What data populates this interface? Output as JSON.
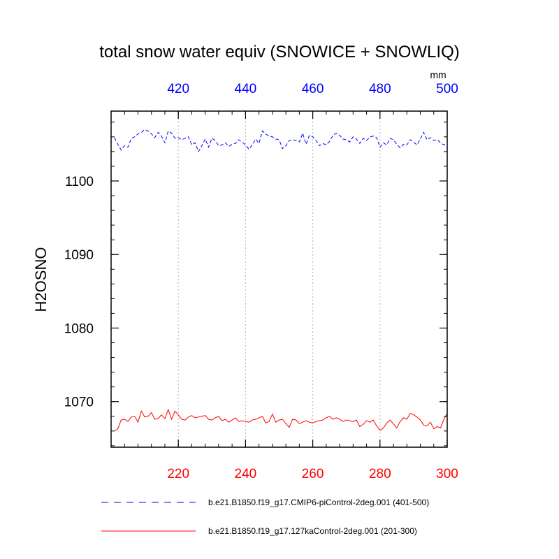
{
  "chart_data": {
    "type": "line",
    "title": "total snow water equiv (SNOWICE + SNOWLIQ)",
    "units": "mm",
    "ylabel": "H2OSNO",
    "ylim": [
      1063.8,
      1109.5
    ],
    "yticks": [
      1070,
      1080,
      1090,
      1100
    ],
    "bottom_axis": {
      "range": [
        200,
        300
      ],
      "ticks": [
        220,
        240,
        260,
        280,
        300
      ],
      "color": "#ff0000"
    },
    "top_axis": {
      "range": [
        400,
        500
      ],
      "ticks": [
        420,
        440,
        460,
        480,
        500
      ],
      "color": "#0000ff"
    },
    "grid": "vertical dotted at major ticks",
    "legend_placement": "below plot",
    "series": [
      {
        "name": "b.e21.B1850.f19_g17.CMIP6-piControl-2deg.001 (401-500)",
        "color": "#0000ff",
        "dash": "dashed",
        "axis": "top",
        "x": [
          401,
          402,
          403,
          404,
          405,
          406,
          407,
          408,
          409,
          410,
          411,
          412,
          413,
          414,
          415,
          416,
          417,
          418,
          419,
          420,
          421,
          422,
          423,
          424,
          425,
          426,
          427,
          428,
          429,
          430,
          431,
          432,
          433,
          434,
          435,
          436,
          437,
          438,
          439,
          440,
          441,
          442,
          443,
          444,
          445,
          446,
          447,
          448,
          449,
          450,
          451,
          452,
          453,
          454,
          455,
          456,
          457,
          458,
          459,
          460,
          461,
          462,
          463,
          464,
          465,
          466,
          467,
          468,
          469,
          470,
          471,
          472,
          473,
          474,
          475,
          476,
          477,
          478,
          479,
          480,
          481,
          482,
          483,
          484,
          485,
          486,
          487,
          488,
          489,
          490,
          491,
          492,
          493,
          494,
          495,
          496,
          497,
          498,
          499,
          500
        ],
        "values": [
          1105.9,
          1105.0,
          1104.2,
          1104.8,
          1104.6,
          1105.8,
          1106.0,
          1106.4,
          1106.6,
          1107.0,
          1106.8,
          1106.4,
          1105.9,
          1106.6,
          1106.1,
          1105.2,
          1106.8,
          1106.5,
          1105.8,
          1105.9,
          1105.6,
          1105.8,
          1106.0,
          1104.9,
          1105.2,
          1104.0,
          1104.8,
          1105.7,
          1104.6,
          1105.8,
          1105.5,
          1104.8,
          1104.9,
          1105.2,
          1104.7,
          1105.0,
          1105.1,
          1105.6,
          1105.3,
          1104.9,
          1104.3,
          1104.9,
          1105.7,
          1105.1,
          1106.8,
          1106.4,
          1106.1,
          1106.0,
          1105.7,
          1105.6,
          1104.4,
          1104.8,
          1105.5,
          1105.6,
          1105.5,
          1105.3,
          1106.5,
          1105.0,
          1106.2,
          1106.0,
          1105.5,
          1104.8,
          1105.1,
          1104.9,
          1105.4,
          1106.2,
          1106.5,
          1106.2,
          1105.7,
          1105.6,
          1105.3,
          1106.0,
          1105.7,
          1105.1,
          1105.8,
          1105.5,
          1106.0,
          1106.1,
          1105.9,
          1104.6,
          1105.2,
          1104.9,
          1105.8,
          1105.6,
          1105.0,
          1104.5,
          1105.0,
          1104.9,
          1105.6,
          1105.3,
          1104.9,
          1105.7,
          1106.6,
          1105.6,
          1105.9,
          1105.5,
          1105.6,
          1105.2,
          1104.9,
          1105.2
        ]
      },
      {
        "name": "b.e21.B1850.f19_g17.127kaControl-2deg.001 (201-300)",
        "color": "#ff0000",
        "dash": "solid",
        "axis": "bottom",
        "x": [
          201,
          202,
          203,
          204,
          205,
          206,
          207,
          208,
          209,
          210,
          211,
          212,
          213,
          214,
          215,
          216,
          217,
          218,
          219,
          220,
          221,
          222,
          223,
          224,
          225,
          226,
          227,
          228,
          229,
          230,
          231,
          232,
          233,
          234,
          235,
          236,
          237,
          238,
          239,
          240,
          241,
          242,
          243,
          244,
          245,
          246,
          247,
          248,
          249,
          250,
          251,
          252,
          253,
          254,
          255,
          256,
          257,
          258,
          259,
          260,
          261,
          262,
          263,
          264,
          265,
          266,
          267,
          268,
          269,
          270,
          271,
          272,
          273,
          274,
          275,
          276,
          277,
          278,
          279,
          280,
          281,
          282,
          283,
          284,
          285,
          286,
          287,
          288,
          289,
          290,
          291,
          292,
          293,
          294,
          295,
          296,
          297,
          298,
          299,
          300
        ],
        "values": [
          1066.0,
          1066.3,
          1067.5,
          1067.6,
          1067.3,
          1067.9,
          1068.0,
          1067.2,
          1068.7,
          1067.9,
          1068.0,
          1068.5,
          1067.6,
          1067.7,
          1068.2,
          1067.7,
          1068.9,
          1067.6,
          1068.7,
          1068.2,
          1067.6,
          1067.5,
          1067.9,
          1068.1,
          1067.8,
          1067.9,
          1068.0,
          1068.1,
          1067.6,
          1067.5,
          1067.8,
          1068.0,
          1067.4,
          1067.6,
          1067.2,
          1067.5,
          1067.8,
          1067.3,
          1067.4,
          1067.3,
          1067.2,
          1067.5,
          1067.6,
          1067.8,
          1068.0,
          1067.1,
          1067.3,
          1068.3,
          1067.2,
          1067.5,
          1067.6,
          1067.0,
          1066.5,
          1067.6,
          1067.5,
          1067.0,
          1067.2,
          1067.4,
          1067.2,
          1067.1,
          1067.3,
          1067.4,
          1067.5,
          1067.8,
          1068.0,
          1067.6,
          1067.8,
          1067.6,
          1067.3,
          1067.5,
          1067.4,
          1067.3,
          1067.5,
          1066.6,
          1066.9,
          1067.4,
          1067.2,
          1067.5,
          1066.7,
          1066.1,
          1066.4,
          1067.1,
          1067.5,
          1067.0,
          1066.4,
          1067.3,
          1067.8,
          1067.6,
          1068.4,
          1068.2,
          1067.9,
          1067.5,
          1066.8,
          1066.7,
          1067.2,
          1066.3,
          1066.6,
          1066.4,
          1067.6,
          1068.4
        ]
      }
    ]
  }
}
